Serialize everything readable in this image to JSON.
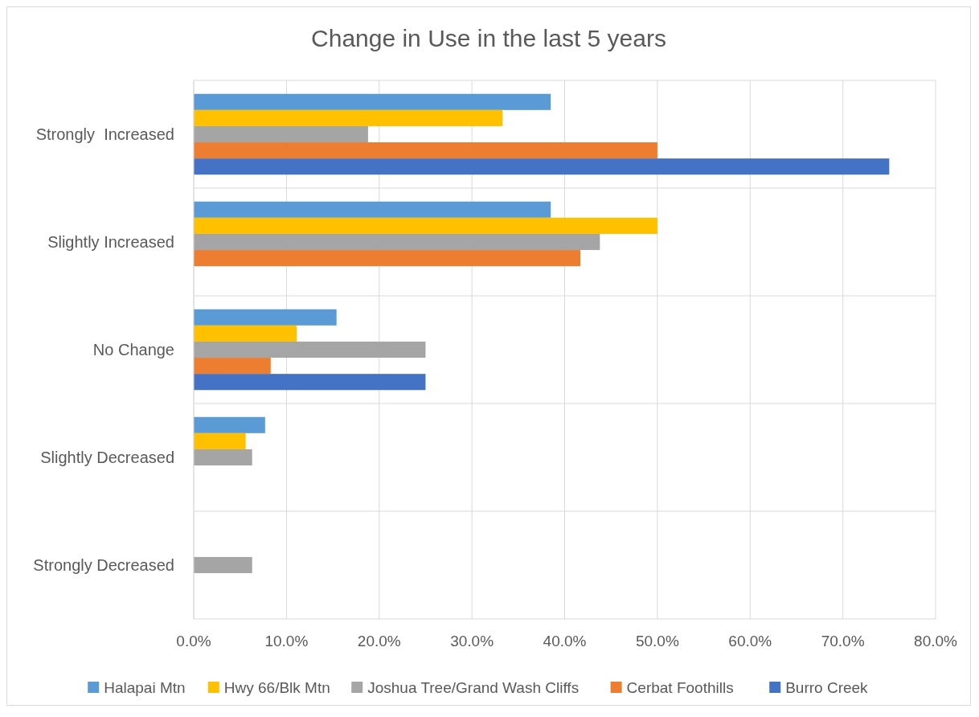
{
  "chart_data": {
    "type": "bar",
    "orientation": "horizontal",
    "title": "Change in Use in the last 5 years",
    "categories": [
      "Strongly  Increased",
      "Slightly Increased",
      "No Change",
      "Slightly Decreased",
      "Strongly Decreased"
    ],
    "series": [
      {
        "name": "Halapai Mtn",
        "color": "#5b9bd5",
        "values": [
          38.5,
          38.5,
          15.4,
          7.7,
          null
        ]
      },
      {
        "name": "Hwy 66/Blk Mtn",
        "color": "#ffc000",
        "values": [
          33.3,
          50,
          11.1,
          5.6,
          null
        ]
      },
      {
        "name": "Joshua Tree/Grand Wash Cliffs",
        "color": "#a5a5a5",
        "values": [
          18.8,
          43.8,
          25,
          6.3,
          6.3
        ]
      },
      {
        "name": "Cerbat Foothills",
        "color": "#ed7d31",
        "values": [
          50,
          41.7,
          8.3,
          null,
          null
        ]
      },
      {
        "name": "Burro Creek",
        "color": "#4472c4",
        "values": [
          75,
          null,
          25,
          null,
          null
        ]
      }
    ],
    "xlim": [
      0,
      80
    ],
    "xticks": [
      {
        "value": 0,
        "label": "0.0%"
      },
      {
        "value": 10,
        "label": "10.0%"
      },
      {
        "value": 20,
        "label": "20.0%"
      },
      {
        "value": 30,
        "label": "30.0%"
      },
      {
        "value": 40,
        "label": "40.0%"
      },
      {
        "value": 50,
        "label": "50.0%"
      },
      {
        "value": 60,
        "label": "60.0%"
      },
      {
        "value": 70,
        "label": "70.0%"
      },
      {
        "value": 80,
        "label": "80.0%"
      }
    ],
    "grid": true,
    "legend": "bottom"
  }
}
